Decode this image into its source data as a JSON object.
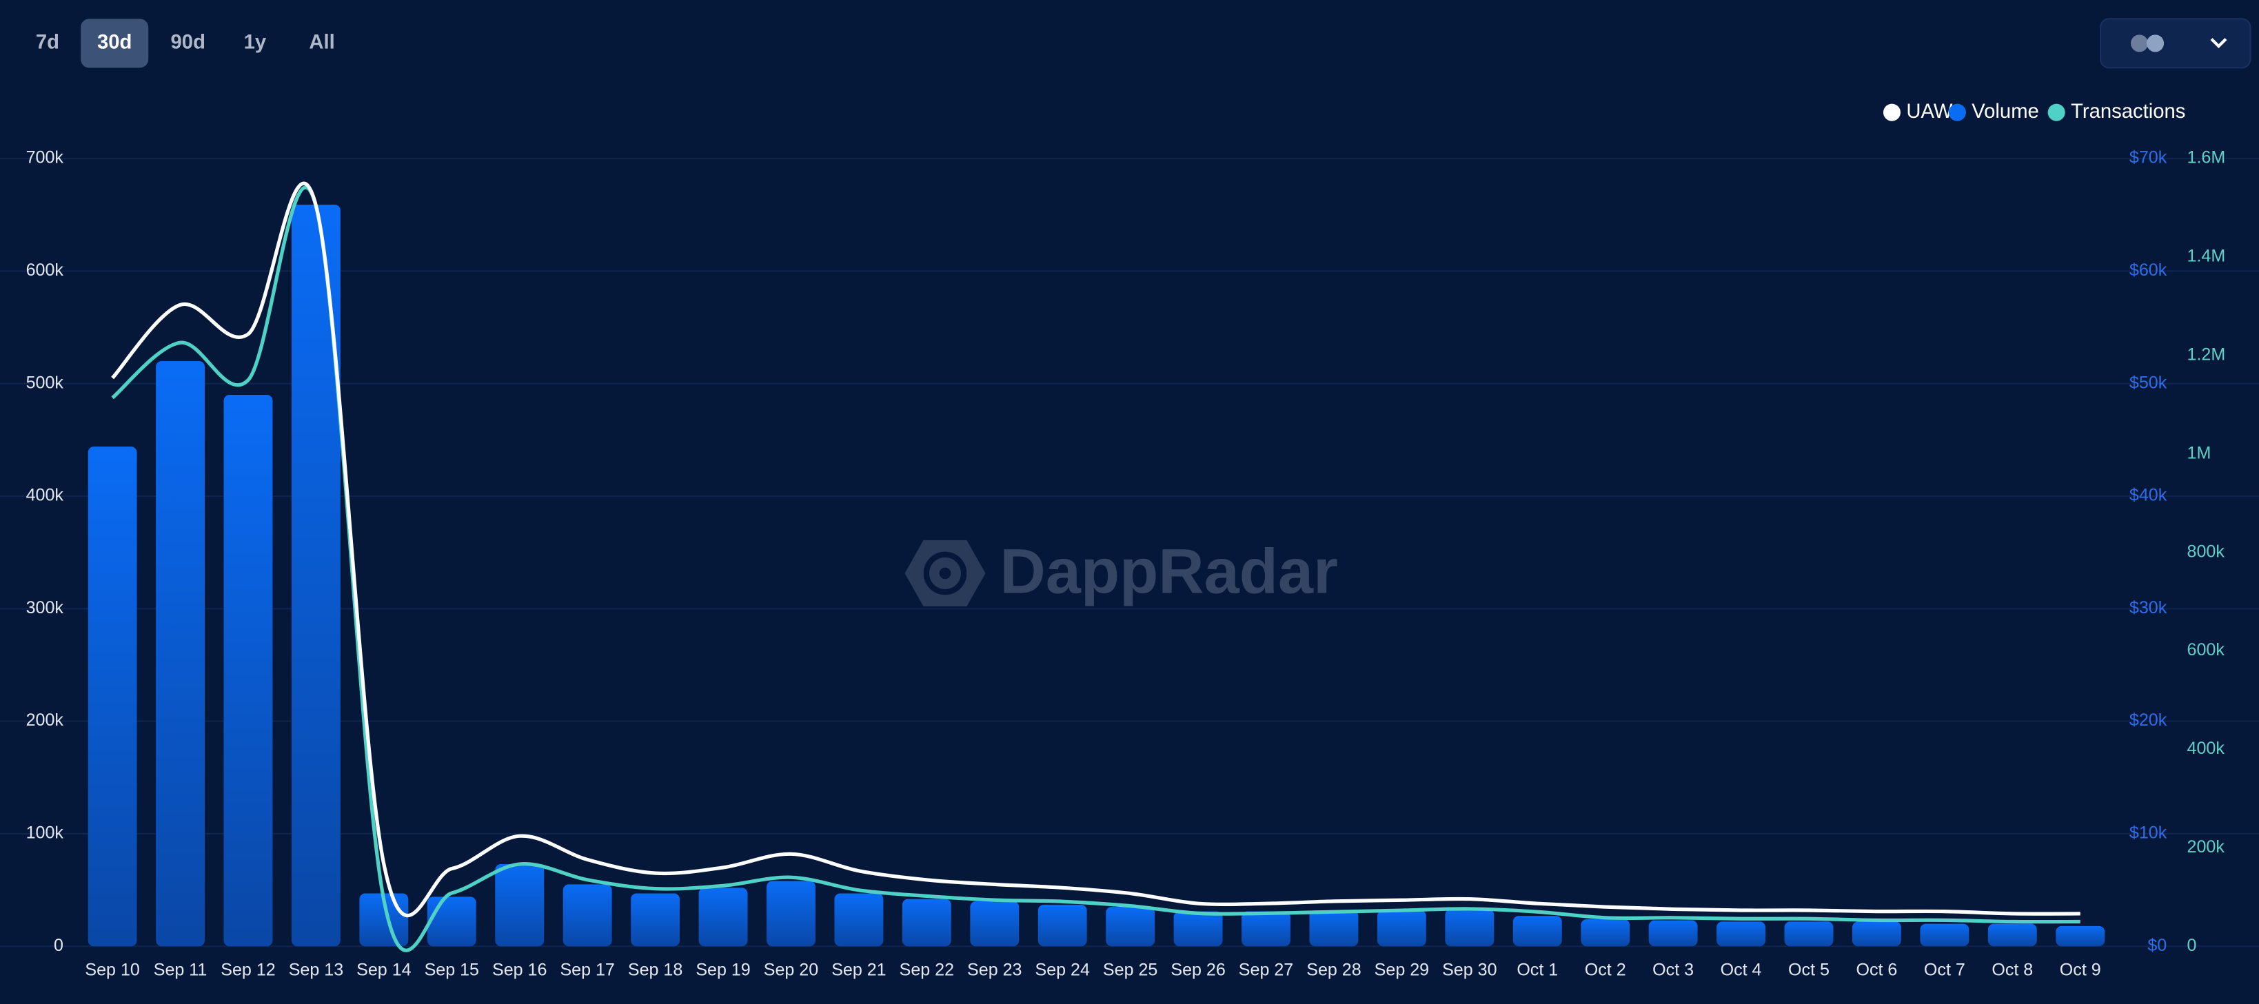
{
  "chart_data": {
    "type": "bar-line",
    "range_buttons": [
      "7d",
      "30d",
      "90d",
      "1y",
      "All"
    ],
    "selected_range": "30d",
    "watermark": "DappRadar",
    "categories": [
      "Sep 10",
      "Sep 11",
      "Sep 12",
      "Sep 13",
      "Sep 14",
      "Sep 15",
      "Sep 16",
      "Sep 17",
      "Sep 18",
      "Sep 19",
      "Sep 20",
      "Sep 21",
      "Sep 22",
      "Sep 23",
      "Sep 24",
      "Sep 25",
      "Sep 26",
      "Sep 27",
      "Sep 28",
      "Sep 29",
      "Sep 30",
      "Oct 1",
      "Oct 2",
      "Oct 3",
      "Oct 4",
      "Oct 5",
      "Oct 6",
      "Oct 7",
      "Oct 8",
      "Oct 9"
    ],
    "series": [
      {
        "name": "UAW",
        "color": "#ffffff",
        "kind": "line",
        "axis": "y",
        "values": [
          505000,
          570000,
          544000,
          658000,
          73000,
          69000,
          98000,
          77000,
          65000,
          70000,
          82000,
          67000,
          59000,
          55000,
          52000,
          47000,
          38000,
          38000,
          40000,
          41000,
          42000,
          38000,
          35000,
          33000,
          32000,
          32000,
          31000,
          31000,
          29000,
          29000
        ]
      },
      {
        "name": "Volume",
        "color": "#0a6cf5",
        "kind": "bar",
        "axis": "y2",
        "values": [
          44400,
          52000,
          49000,
          65900,
          4700,
          4400,
          7300,
          5500,
          4700,
          5200,
          5800,
          4700,
          4200,
          4000,
          3700,
          3500,
          3100,
          3100,
          3200,
          3200,
          3300,
          2700,
          2400,
          2300,
          2200,
          2200,
          2200,
          2000,
          2000,
          1800
        ]
      },
      {
        "name": "Transactions",
        "color": "#4fd1c5",
        "kind": "line",
        "axis": "y3",
        "values": [
          1114000,
          1226000,
          1150000,
          1503000,
          94000,
          108000,
          167000,
          135000,
          117000,
          123000,
          140000,
          114000,
          102000,
          94000,
          91000,
          82000,
          67000,
          67000,
          70000,
          73000,
          76000,
          70000,
          58000,
          58000,
          56000,
          56000,
          53000,
          53000,
          50000,
          50000
        ]
      }
    ],
    "ylim": [
      0,
      700000
    ],
    "yticks": [
      {
        "value": 0,
        "label": "0"
      },
      {
        "value": 100000,
        "label": "100k"
      },
      {
        "value": 200000,
        "label": "200k"
      },
      {
        "value": 300000,
        "label": "300k"
      },
      {
        "value": 400000,
        "label": "400k"
      },
      {
        "value": 500000,
        "label": "500k"
      },
      {
        "value": 600000,
        "label": "600k"
      },
      {
        "value": 700000,
        "label": "700k"
      }
    ],
    "y2lim": [
      0,
      70000
    ],
    "y2ticks": [
      {
        "value": 0,
        "label": "$0"
      },
      {
        "value": 10000,
        "label": "$10k"
      },
      {
        "value": 20000,
        "label": "$20k"
      },
      {
        "value": 30000,
        "label": "$30k"
      },
      {
        "value": 40000,
        "label": "$40k"
      },
      {
        "value": 50000,
        "label": "$50k"
      },
      {
        "value": 60000,
        "label": "$60k"
      },
      {
        "value": 70000,
        "label": "$70k"
      }
    ],
    "y3lim": [
      0,
      1600000
    ],
    "y3ticks": [
      {
        "value": 0,
        "label": "0"
      },
      {
        "value": 200000,
        "label": "200k"
      },
      {
        "value": 400000,
        "label": "400k"
      },
      {
        "value": 600000,
        "label": "600k"
      },
      {
        "value": 800000,
        "label": "800k"
      },
      {
        "value": 1000000,
        "label": "1M"
      },
      {
        "value": 1200000,
        "label": "1.2M"
      },
      {
        "value": 1400000,
        "label": "1.4M"
      },
      {
        "value": 1600000,
        "label": "1.6M"
      }
    ],
    "grid": true,
    "legend_position": "top-right"
  }
}
